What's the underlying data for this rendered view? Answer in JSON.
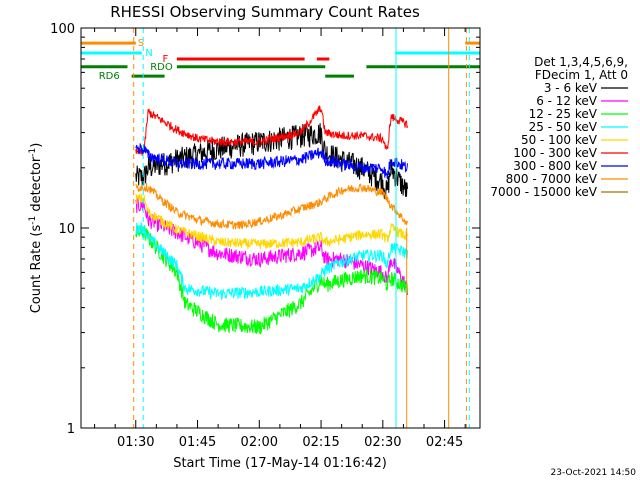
{
  "chart_data": {
    "type": "line",
    "title": "RHESSI Observing Summary Count Rates",
    "xlabel": "Start Time (17-May-14 01:16:42)",
    "ylabel_main": "Count Rate (s",
    "ylabel_sup": "-1",
    "ylabel_rest": " detector",
    "ylabel_end": ")",
    "yscale": "log",
    "ylim": [
      1,
      100
    ],
    "xlim_minutes": [
      1276.7,
      1373.6
    ],
    "x_ticks": [
      {
        "label": "01:30",
        "t": 1290
      },
      {
        "label": "01:45",
        "t": 1305
      },
      {
        "label": "02:00",
        "t": 1320
      },
      {
        "label": "02:15",
        "t": 1335
      },
      {
        "label": "02:30",
        "t": 1350
      },
      {
        "label": "02:45",
        "t": 1365
      }
    ],
    "y_ticks": [
      {
        "label": "1",
        "v": 1
      },
      {
        "label": "10",
        "v": 10
      },
      {
        "label": "100",
        "v": 100
      }
    ],
    "legend_header": [
      "Det 1,3,4,5,6,9,",
      "FDecim 1, Att 0"
    ],
    "series": [
      {
        "name": "3 - 6 keV",
        "color": "#000000",
        "noise": 0.14,
        "t": [
          1290,
          1292,
          1293,
          1300,
          1310,
          1320,
          1330,
          1335,
          1336,
          1340,
          1345,
          1350,
          1351,
          1352,
          1356
        ],
        "v": [
          18,
          18,
          20,
          22,
          25,
          27,
          29,
          30,
          24,
          22,
          20,
          17,
          15,
          20,
          15
        ]
      },
      {
        "name": "6 - 12 keV",
        "color": "#ff00ff",
        "noise": 0.09,
        "t": [
          1290,
          1292,
          1293,
          1300,
          1310,
          1320,
          1330,
          1335,
          1336,
          1340,
          1345,
          1350,
          1351,
          1352,
          1356
        ],
        "v": [
          13,
          13,
          11,
          9.5,
          7.5,
          7,
          7.5,
          8,
          7,
          7,
          6.5,
          6,
          5.5,
          7,
          5
        ]
      },
      {
        "name": "12 - 25 keV",
        "color": "#00ff00",
        "noise": 0.09,
        "t": [
          1290,
          1292,
          1293,
          1300,
          1302,
          1310,
          1320,
          1330,
          1335,
          1336,
          1340,
          1345,
          1350,
          1351,
          1352,
          1356
        ],
        "v": [
          9.5,
          9.5,
          9,
          6,
          4.2,
          3.3,
          3.2,
          4.2,
          5.5,
          5.2,
          5.5,
          5.8,
          5.6,
          5.2,
          5.6,
          5
        ]
      },
      {
        "name": "25 - 50 keV",
        "color": "#00ffff",
        "noise": 0.07,
        "t": [
          1290,
          1292,
          1293,
          1300,
          1302,
          1310,
          1320,
          1330,
          1335,
          1336,
          1340,
          1345,
          1350,
          1351,
          1352,
          1356
        ],
        "v": [
          10,
          10,
          9,
          6.5,
          5,
          4.7,
          4.8,
          5,
          5.8,
          6.2,
          6.8,
          7.3,
          7.3,
          6.5,
          8,
          7.5
        ]
      },
      {
        "name": "50 - 100 keV",
        "color": "#ffd700",
        "noise": 0.06,
        "t": [
          1290,
          1292,
          1293,
          1300,
          1310,
          1320,
          1330,
          1335,
          1336,
          1340,
          1345,
          1350,
          1351,
          1352,
          1356
        ],
        "v": [
          14,
          14,
          12,
          9.8,
          8.5,
          8.3,
          8.5,
          9,
          8.5,
          8.8,
          9.3,
          9.3,
          8.7,
          10,
          9
        ]
      },
      {
        "name": "100 - 300 keV",
        "color": "#ff0000",
        "noise": 0.05,
        "t": [
          1290,
          1292,
          1293,
          1300,
          1305,
          1310,
          1320,
          1330,
          1335,
          1336,
          1340,
          1345,
          1350,
          1351,
          1352,
          1356
        ],
        "v": [
          24,
          24,
          38,
          31,
          28,
          27,
          27,
          30,
          40,
          30,
          29,
          29,
          28,
          24,
          36,
          33
        ]
      },
      {
        "name": "300 - 800 keV",
        "color": "#0000ff",
        "noise": 0.07,
        "t": [
          1290,
          1292,
          1293,
          1300,
          1310,
          1320,
          1330,
          1335,
          1336,
          1340,
          1345,
          1350,
          1351,
          1352,
          1356
        ],
        "v": [
          25,
          25,
          23,
          21,
          21,
          21,
          22,
          24,
          22,
          21,
          20,
          20,
          18,
          22,
          20
        ]
      },
      {
        "name": "800 - 7000 keV",
        "color": "#ff8c00",
        "noise": 0.05,
        "t": [
          1290,
          1292,
          1293,
          1296,
          1300,
          1305,
          1310,
          1315,
          1320,
          1325,
          1330,
          1335,
          1336,
          1340,
          1345,
          1350,
          1351,
          1352,
          1356
        ],
        "v": [
          16,
          16,
          16,
          14,
          12,
          11,
          10.5,
          10.3,
          10.8,
          11.5,
          12.5,
          13.5,
          14,
          15.5,
          16,
          15,
          14,
          13,
          10.5
        ]
      },
      {
        "name": "7000 - 15000 keV",
        "color": "#a07800",
        "noise": 0,
        "t": [],
        "v": []
      }
    ],
    "state_bars": [
      {
        "label": "S",
        "color": "#ff8c00",
        "v": 84,
        "segments": [
          [
            1276.7,
            1290
          ],
          [
            1370,
            1373.6
          ]
        ]
      },
      {
        "label": "N",
        "color": "#00ffff",
        "v": 75,
        "segments": [
          [
            1276.7,
            1291.5
          ],
          [
            1353,
            1373.6
          ]
        ]
      },
      {
        "label": "F",
        "color": "#ff0000",
        "v": 70,
        "segments": [
          [
            1300,
            1331
          ],
          [
            1334,
            1337
          ]
        ]
      },
      {
        "label": "RDO",
        "color": "#008000",
        "v": 64,
        "segments": [
          [
            1276.7,
            1288
          ],
          [
            1300,
            1336
          ],
          [
            1346,
            1373.6
          ]
        ]
      },
      {
        "label": "RD6",
        "color": "#008000",
        "v": 57.5,
        "segments": [
          [
            1289,
            1297
          ],
          [
            1336,
            1343
          ]
        ]
      }
    ],
    "vertical_lines": [
      {
        "t": 1289.5,
        "color": "#ff8c00",
        "style": "dashed",
        "from": 1,
        "to": 100
      },
      {
        "t": 1291.8,
        "color": "#00ffff",
        "style": "dashed",
        "from": 1,
        "to": 100
      },
      {
        "t": 1353.2,
        "color": "#00ffff",
        "style": "solid",
        "from": 1,
        "to": 100
      },
      {
        "t": 1355.8,
        "color": "#ff8c00",
        "style": "solid",
        "from": 1,
        "to": 10
      },
      {
        "t": 1366,
        "color": "#ff8c00",
        "style": "solid",
        "from": 1,
        "to": 100
      },
      {
        "t": 1370.3,
        "color": "#ff8c00",
        "style": "dashed",
        "from": 1,
        "to": 100
      },
      {
        "t": 1371,
        "color": "#00ffff",
        "style": "dashed",
        "from": 1,
        "to": 100
      }
    ],
    "footer_date": "23-Oct-2021 14:50"
  }
}
